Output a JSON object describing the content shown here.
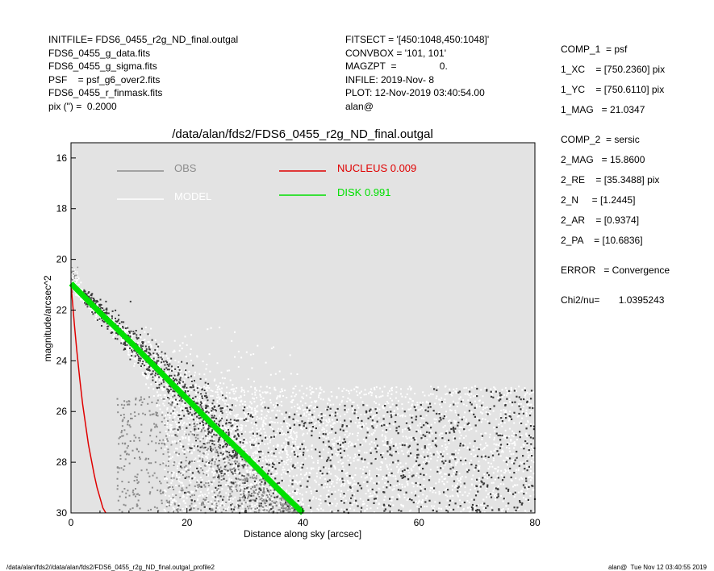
{
  "header_left": [
    "INITFILE= FDS6_0455_r2g_ND_final.outgal",
    "FDS6_0455_g_data.fits",
    "FDS6_0455_g_sigma.fits",
    "PSF    = psf_g6_over2.fits",
    "FDS6_0455_r_finmask.fits",
    "pix (\") =  0.2000"
  ],
  "header_mid": [
    "FITSECT = '[450:1048,450:1048]'",
    "CONVBOX = '101, 101'",
    "MAGZPT  =                0.",
    "INFILE: 2019-Nov- 8",
    "PLOT: 12-Nov-2019 03:40:54.00",
    "alan@"
  ],
  "header_right": [
    "COMP_1  = psf",
    "1_XC    = [750.2360] pix",
    "1_YC    = [750.6110] pix",
    "1_MAG   = 21.0347",
    "",
    "COMP_2  = sersic",
    "2_MAG   = 15.8600",
    "2_RE    = [35.3488] pix",
    "2_N     = [1.2445]",
    "2_AR    = [0.9374]",
    "2_PA    = [10.6836]",
    "",
    "ERROR   = Convergence",
    "",
    "Chi2/nu=       1.0395243"
  ],
  "footer_left": "/data/alan/fds2//data/alan/fds2/FDS6_0455_r2g_ND_final.outgal_profile2",
  "footer_right": "alan@  Tue Nov 12 03:40:55 2019",
  "colors": {
    "panel_bg": "#e3e3e3",
    "obs": "#8c8c8c",
    "model": "#ffffff",
    "nucleus": "#e00000",
    "disk": "#00e000",
    "scatter_dark": "#3a3a3a",
    "scatter_mid": "#8a8a8a"
  },
  "chart_data": {
    "type": "scatter",
    "title": "/data/alan/fds2/FDS6_0455_r2g_ND_final.outgal",
    "xlabel": "Distance along sky [arcsec]",
    "ylabel": "magnitude/arcsec^2",
    "xlim": [
      0,
      80
    ],
    "ylim": [
      30,
      15.4
    ],
    "y_inverted": true,
    "x_ticks": [
      0,
      20,
      40,
      60,
      80
    ],
    "y_ticks": [
      16,
      18,
      20,
      22,
      24,
      26,
      28,
      30
    ],
    "legend": [
      {
        "name": "OBS",
        "color": "#8c8c8c",
        "value": ""
      },
      {
        "name": "MODEL",
        "color": "#ffffff",
        "value": ""
      },
      {
        "name": "NUCLEUS",
        "color": "#e00000",
        "value": "0.009"
      },
      {
        "name": "DISK",
        "color": "#00e000",
        "value": "0.991"
      }
    ],
    "series": [
      {
        "name": "NUCLEUS",
        "x": [
          0,
          0.3,
          0.6,
          1.0,
          1.5,
          2.0,
          2.5,
          3.0,
          3.5,
          4.0,
          4.5,
          5.0,
          5.5,
          6.0
        ],
        "y": [
          21.0,
          21.8,
          22.6,
          23.6,
          24.7,
          25.7,
          26.5,
          27.3,
          27.9,
          28.5,
          29.0,
          29.4,
          29.8,
          30.0
        ]
      },
      {
        "name": "DISK",
        "x": [
          0,
          5,
          10,
          15,
          20,
          25,
          30,
          35,
          40
        ],
        "y": [
          20.95,
          22.1,
          23.2,
          24.35,
          25.5,
          26.65,
          27.75,
          28.9,
          30.0
        ]
      }
    ],
    "scatter_description_values": {
      "inner_profile_x": [
        0,
        40
      ],
      "outer_noise_y_range": [
        24.8,
        30
      ]
    }
  }
}
